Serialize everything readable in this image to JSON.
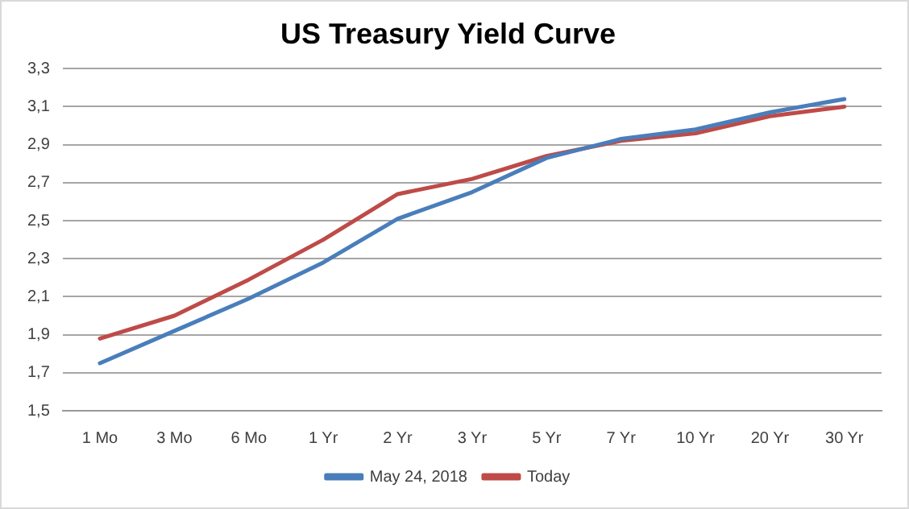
{
  "chart_data": {
    "type": "line",
    "title": "US Treasury Yield Curve",
    "categories": [
      "1 Mo",
      "3 Mo",
      "6 Mo",
      "1 Yr",
      "2 Yr",
      "3 Yr",
      "5 Yr",
      "7 Yr",
      "10 Yr",
      "20 Yr",
      "30 Yr"
    ],
    "series": [
      {
        "name": "May 24, 2018",
        "color": "#4a7ebb",
        "values": [
          1.75,
          1.92,
          2.09,
          2.28,
          2.51,
          2.65,
          2.83,
          2.93,
          2.98,
          3.07,
          3.14
        ]
      },
      {
        "name": "Today",
        "color": "#be4b48",
        "values": [
          1.88,
          2.0,
          2.19,
          2.4,
          2.64,
          2.72,
          2.84,
          2.92,
          2.96,
          3.05,
          3.1
        ]
      }
    ],
    "ylim": [
      1.5,
      3.3
    ],
    "yticks": [
      {
        "value": 1.5,
        "label": "1,5"
      },
      {
        "value": 1.7,
        "label": "1,7"
      },
      {
        "value": 1.9,
        "label": "1,9"
      },
      {
        "value": 2.1,
        "label": "2,1"
      },
      {
        "value": 2.3,
        "label": "2,3"
      },
      {
        "value": 2.5,
        "label": "2,5"
      },
      {
        "value": 2.7,
        "label": "2,7"
      },
      {
        "value": 2.9,
        "label": "2,9"
      },
      {
        "value": 3.1,
        "label": "3,1"
      },
      {
        "value": 3.3,
        "label": "3,3"
      }
    ],
    "grid": "y",
    "legend": "bottom",
    "marker": "none",
    "line_style": "solid"
  }
}
